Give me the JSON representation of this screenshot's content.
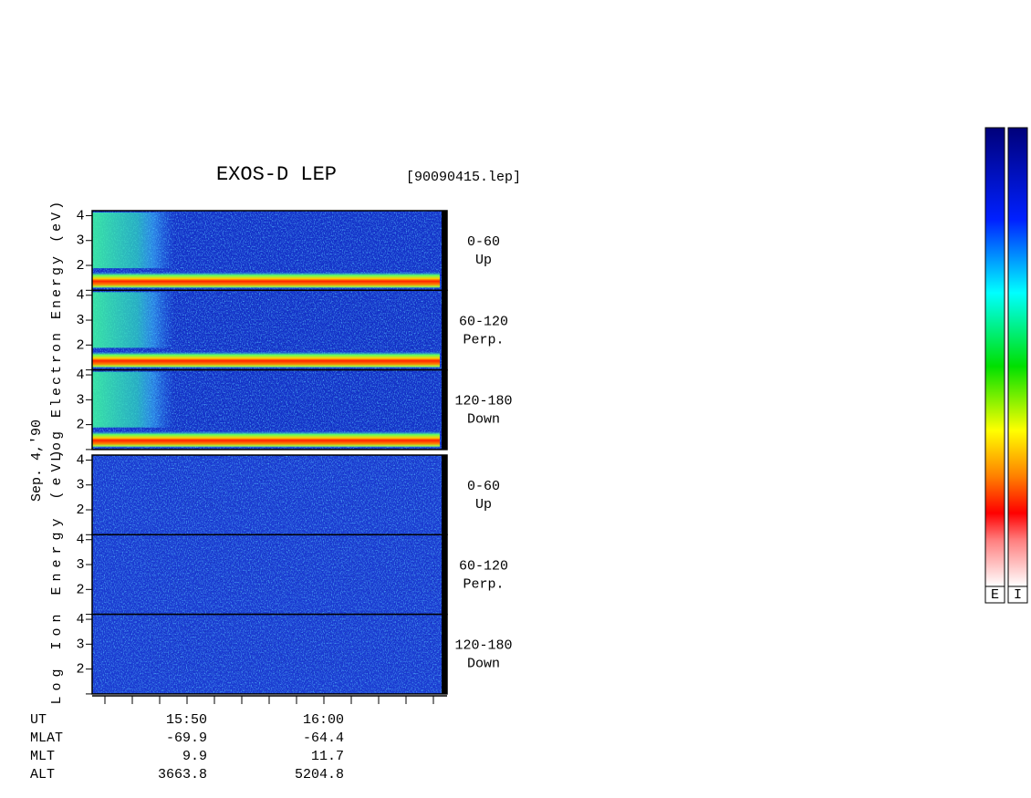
{
  "title": "EXOS-D LEP",
  "file": "[90090415.lep]",
  "date": "Sep. 4,'90",
  "ylim": [
    1,
    4.2
  ],
  "yticks": [
    4,
    3,
    2
  ],
  "groups": [
    {
      "label": "Log Electron Energy (eV)",
      "panels": [
        {
          "range": "0-60",
          "direction": "Up"
        },
        {
          "range": "60-120",
          "direction": "Perp."
        },
        {
          "range": "120-180",
          "direction": "Down"
        }
      ]
    },
    {
      "label": "Log Ion Energy (eV)",
      "panels": [
        {
          "range": "0-60",
          "direction": "Up"
        },
        {
          "range": "60-120",
          "direction": "Perp."
        },
        {
          "range": "120-180",
          "direction": "Down"
        }
      ]
    }
  ],
  "time_axis": {
    "rows": [
      {
        "label": "UT",
        "values": [
          "15:50",
          "16:00"
        ]
      },
      {
        "label": "MLAT",
        "values": [
          "-69.9",
          "-64.4"
        ]
      },
      {
        "label": "MLT",
        "values": [
          "9.9",
          "11.7"
        ]
      },
      {
        "label": "ALT",
        "values": [
          "3663.8",
          "5204.8"
        ]
      }
    ]
  },
  "colorbars": [
    "E",
    "I"
  ]
}
